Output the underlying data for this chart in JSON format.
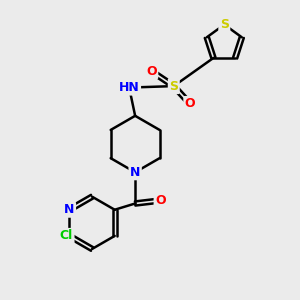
{
  "background_color": "#ebebeb",
  "bond_color": "#000000",
  "atom_colors": {
    "S": "#cccc00",
    "N": "#0000ff",
    "O": "#ff0000",
    "Cl": "#00cc00",
    "C": "#000000",
    "H": "#777777"
  },
  "figsize": [
    3.0,
    3.0
  ],
  "dpi": 100
}
